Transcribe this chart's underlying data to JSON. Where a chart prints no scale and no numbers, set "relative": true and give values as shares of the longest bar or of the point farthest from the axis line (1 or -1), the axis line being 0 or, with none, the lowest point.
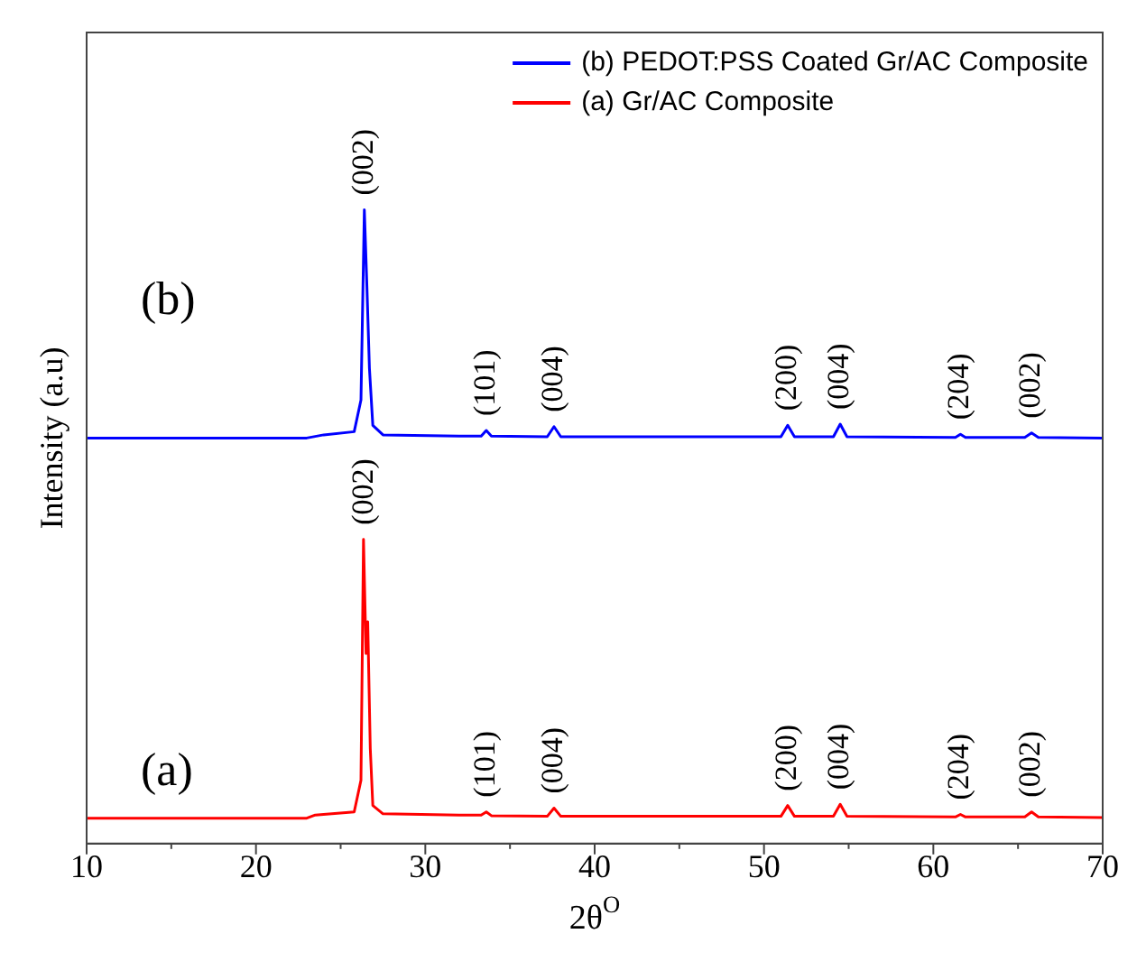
{
  "chart_data": {
    "type": "line",
    "relative": true,
    "xlabel": "2θ$^{O}$",
    "ylabel": "Intensity (a.u)",
    "xlim": [
      10,
      70
    ],
    "xticks": [
      10,
      {
        "value": 15,
        "label": null
      },
      20,
      {
        "value": 25,
        "label": null
      },
      30,
      {
        "value": 35,
        "label": null
      },
      40,
      {
        "value": 45,
        "label": null
      },
      50,
      {
        "value": 55,
        "label": null
      },
      60,
      {
        "value": 65,
        "label": null
      },
      70
    ],
    "legend": "top right",
    "grid": false,
    "marker": "none",
    "line_style": "solid",
    "series": [
      {
        "name": "(b) PEDOT:PSS Coated Gr/AC Composite",
        "color": "#0000ff",
        "x": [
          10,
          23,
          24,
          25.8,
          26.2,
          26.4,
          26.55,
          26.7,
          26.9,
          27.5,
          32,
          33.3,
          33.6,
          33.9,
          37.2,
          37.6,
          38,
          51,
          51.4,
          51.8,
          54.1,
          54.5,
          54.9,
          61.3,
          61.6,
          61.9,
          65.4,
          65.8,
          66.2,
          70
        ],
        "values": [
          0.64,
          0.64,
          0.645,
          0.65,
          0.7,
          1.0,
          0.88,
          0.75,
          0.66,
          0.645,
          0.643,
          0.643,
          0.652,
          0.643,
          0.642,
          0.658,
          0.642,
          0.642,
          0.66,
          0.642,
          0.642,
          0.662,
          0.642,
          0.641,
          0.646,
          0.641,
          0.641,
          0.648,
          0.641,
          0.64
        ]
      },
      {
        "name": "(a) Gr/AC Composite",
        "color": "#ff0000",
        "x": [
          10,
          23,
          23.5,
          25.8,
          26.2,
          26.35,
          26.5,
          26.6,
          26.75,
          26.9,
          27.5,
          32,
          33.3,
          33.6,
          33.9,
          37.2,
          37.6,
          38,
          51,
          51.4,
          51.8,
          54.1,
          54.5,
          54.9,
          61.3,
          61.6,
          61.9,
          65.4,
          65.8,
          66.2,
          70
        ],
        "values": [
          0.04,
          0.04,
          0.045,
          0.05,
          0.1,
          0.48,
          0.3,
          0.35,
          0.15,
          0.06,
          0.047,
          0.045,
          0.045,
          0.05,
          0.044,
          0.043,
          0.056,
          0.043,
          0.043,
          0.06,
          0.043,
          0.043,
          0.062,
          0.043,
          0.042,
          0.046,
          0.042,
          0.042,
          0.05,
          0.042,
          0.041
        ]
      }
    ],
    "annotations": [
      "(b)",
      "(a)",
      {
        "text": "(002)",
        "x": 26.4,
        "y": 1.0
      },
      {
        "text": "(101)",
        "x": 33.6,
        "y": 0.652
      },
      {
        "text": "(004)",
        "x": 37.6,
        "y": 0.658
      },
      {
        "text": "(200)",
        "x": 51.4,
        "y": 0.66
      },
      {
        "text": "(004)",
        "x": 54.5,
        "y": 0.662
      },
      {
        "text": "(204)",
        "x": 61.6,
        "y": 0.646
      },
      {
        "text": "(002)",
        "x": 65.8,
        "y": 0.648
      },
      {
        "text": "(002)",
        "x": 26.4,
        "y": 0.48
      },
      {
        "text": "(101)",
        "x": 33.6,
        "y": 0.05
      },
      {
        "text": "(004)",
        "x": 37.6,
        "y": 0.056
      },
      {
        "text": "(200)",
        "x": 51.4,
        "y": 0.06
      },
      {
        "text": "(004)",
        "x": 54.5,
        "y": 0.062
      },
      {
        "text": "(204)",
        "x": 61.6,
        "y": 0.046
      },
      {
        "text": "(002)",
        "x": 65.8,
        "y": 0.05
      }
    ]
  }
}
